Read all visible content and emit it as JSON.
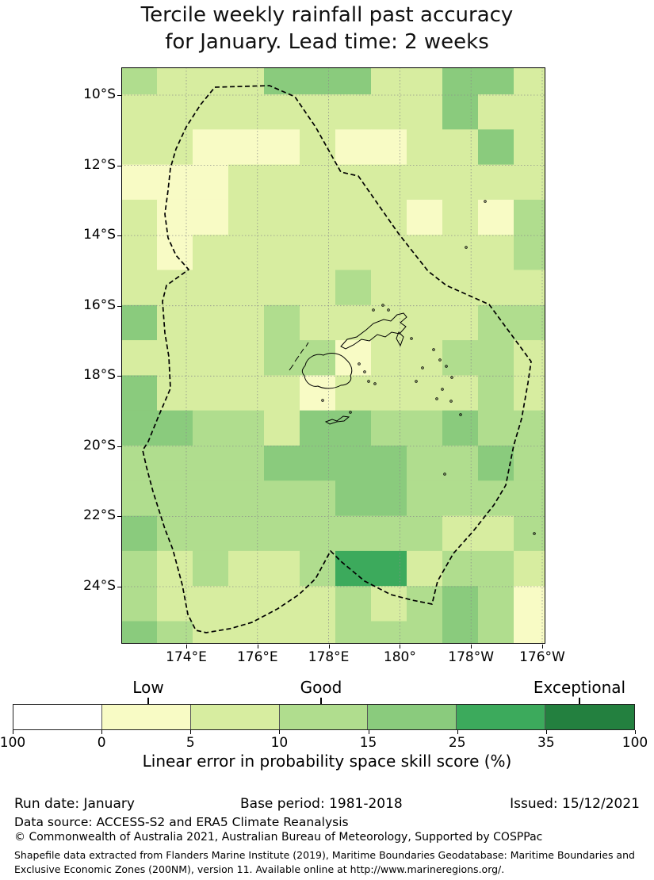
{
  "title": {
    "line1": "Tercile weekly rainfall past accuracy",
    "line2": "for January. Lead time: 2 weeks"
  },
  "map": {
    "lat_tick_labels": [
      "10°S",
      "12°S",
      "14°S",
      "16°S",
      "18°S",
      "20°S",
      "22°S",
      "24°S"
    ],
    "lon_tick_labels": [
      "174°E",
      "176°E",
      "178°E",
      "180°",
      "178°W",
      "176°W"
    ],
    "class_colors": {
      "0": "#ffffff",
      "1": "#f8fbc5",
      "2": "#d7eda0",
      "3": "#b0dd8e",
      "4": "#8acb7d",
      "5": "#3caa5c",
      "6": "#23803f"
    },
    "grid_rows": [
      "322244422442",
      "222222222422",
      "221112112242",
      "111222222222",
      "211222221213",
      "212222222223",
      "222222322222",
      "422232222233",
      "222233122332",
      "422221222232",
      "443324433433",
      "333344443343",
      "333333443333",
      "433333333223",
      "323223552332",
      "322222323431",
      "432222333431"
    ],
    "grid_bins_legend": [
      "<0",
      "0-5",
      "5-10",
      "10-15",
      "15-25",
      "25-35",
      "35-100"
    ]
  },
  "colorbar": {
    "label_low": "Low",
    "label_good": "Good",
    "label_exceptional": "Exceptional",
    "tick_labels": [
      "100",
      "0",
      "5",
      "10",
      "15",
      "25",
      "35",
      "100"
    ],
    "segment_colors": [
      "#ffffff",
      "#f8fbc5",
      "#d7eda0",
      "#b0dd8e",
      "#8acb7d",
      "#3caa5c",
      "#23803f"
    ],
    "caption": "Linear error in probability space skill score (%)"
  },
  "footer": {
    "run_date": "Run date: January",
    "base_period": "Base period: 1981-2018",
    "issued": "Issued: 15/12/2021",
    "data_source": "Data source: ACCESS-S2 and ERA5 Climate Reanalysis",
    "copyright": "© Commonwealth of Australia 2021, Australian Bureau of Meteorology, Supported by COSPPac",
    "shapefile_line1": "Shapefile data extracted from Flanders Marine Institute (2019), Maritime Boundaries Geodatabase: Maritime Boundaries and",
    "shapefile_line2": "Exclusive Economic Zones (200NM), version 11. Available online at http://www.marineregions.org/."
  }
}
